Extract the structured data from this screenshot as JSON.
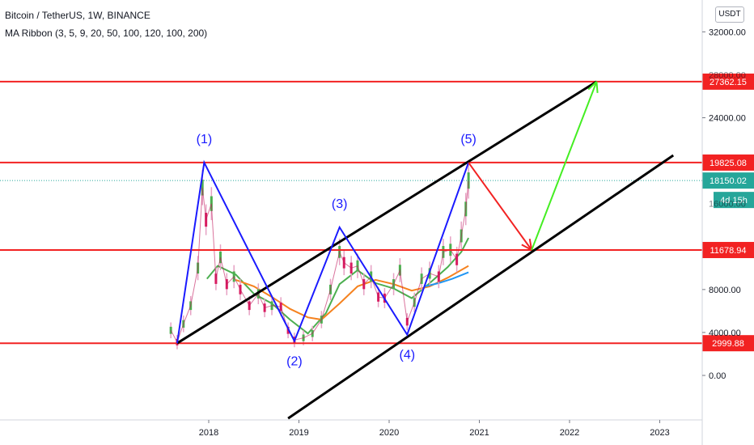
{
  "legend": {
    "title": "Bitcoin / TetherUS, 1W, BINANCE",
    "indicator": "MA Ribbon (3, 5, 9, 20, 50, 100, 120, 100, 200)"
  },
  "currency_badge": "USDT",
  "colors": {
    "horizontal_levels": "#f22222",
    "channel_lines": "#000000",
    "wave_lines": "#1a1aff",
    "target_arrow": "#44ee22",
    "down_arrow": "#f22222",
    "price_marker": "#26a69a",
    "ma_orange": "#f5821f",
    "ma_blue": "#2196f3",
    "ma_green": "#4caf50"
  },
  "chart_data": {
    "type": "candlestick",
    "symbol": "BTCUSDT",
    "interval": "1W",
    "exchange": "BINANCE",
    "x_ticks": [
      "2018",
      "2019",
      "2020",
      "2021",
      "2022",
      "2023"
    ],
    "y_ticks": [
      "0.00",
      "4000.00",
      "8000.00",
      "24000.00",
      "32000.00"
    ],
    "y_ticks_partial": [
      "28000.00",
      "16000.00"
    ],
    "price_levels": [
      {
        "label": "27362.15",
        "value": 27362.15
      },
      {
        "label": "19825.08",
        "value": 19825.08
      },
      {
        "label": "11678.94",
        "value": 11678.94
      },
      {
        "label": "2999.88",
        "value": 2999.88
      }
    ],
    "current_price": {
      "label": "18150.02",
      "value": 18150.02,
      "countdown": "4d 15h"
    },
    "wave_labels": [
      "(1)",
      "(2)",
      "(3)",
      "(4)",
      "(5)"
    ],
    "wave_points": [
      {
        "date": 2017.65,
        "value": 3000
      },
      {
        "date": 2017.95,
        "value": 19825
      },
      {
        "date": 2018.95,
        "value": 3200
      },
      {
        "date": 2019.45,
        "value": 13800
      },
      {
        "date": 2020.2,
        "value": 3800
      },
      {
        "date": 2020.88,
        "value": 19825
      },
      {
        "date": 2021.58,
        "value": 11679
      },
      {
        "date": 2022.3,
        "value": 27362
      }
    ],
    "price_series": [
      {
        "date": 2017.58,
        "value": 4200
      },
      {
        "date": 2017.65,
        "value": 3100
      },
      {
        "date": 2017.72,
        "value": 4800
      },
      {
        "date": 2017.8,
        "value": 6500
      },
      {
        "date": 2017.88,
        "value": 10000
      },
      {
        "date": 2017.93,
        "value": 17500
      },
      {
        "date": 2017.97,
        "value": 14500
      },
      {
        "date": 2018.03,
        "value": 16000
      },
      {
        "date": 2018.08,
        "value": 9000
      },
      {
        "date": 2018.13,
        "value": 11000
      },
      {
        "date": 2018.2,
        "value": 8500
      },
      {
        "date": 2018.28,
        "value": 9200
      },
      {
        "date": 2018.35,
        "value": 8000
      },
      {
        "date": 2018.45,
        "value": 6500
      },
      {
        "date": 2018.55,
        "value": 7600
      },
      {
        "date": 2018.62,
        "value": 6300
      },
      {
        "date": 2018.7,
        "value": 6500
      },
      {
        "date": 2018.8,
        "value": 6400
      },
      {
        "date": 2018.88,
        "value": 4200
      },
      {
        "date": 2018.95,
        "value": 3300
      },
      {
        "date": 2019.05,
        "value": 3500
      },
      {
        "date": 2019.15,
        "value": 3900
      },
      {
        "date": 2019.25,
        "value": 5200
      },
      {
        "date": 2019.35,
        "value": 8000
      },
      {
        "date": 2019.45,
        "value": 11500
      },
      {
        "date": 2019.5,
        "value": 10500
      },
      {
        "date": 2019.58,
        "value": 10000
      },
      {
        "date": 2019.65,
        "value": 10200
      },
      {
        "date": 2019.72,
        "value": 8500
      },
      {
        "date": 2019.8,
        "value": 9200
      },
      {
        "date": 2019.88,
        "value": 7300
      },
      {
        "date": 2019.95,
        "value": 7200
      },
      {
        "date": 2020.05,
        "value": 8500
      },
      {
        "date": 2020.12,
        "value": 9800
      },
      {
        "date": 2020.2,
        "value": 5000
      },
      {
        "date": 2020.28,
        "value": 6800
      },
      {
        "date": 2020.36,
        "value": 9000
      },
      {
        "date": 2020.45,
        "value": 9500
      },
      {
        "date": 2020.55,
        "value": 9200
      },
      {
        "date": 2020.6,
        "value": 11500
      },
      {
        "date": 2020.68,
        "value": 11700
      },
      {
        "date": 2020.75,
        "value": 10800
      },
      {
        "date": 2020.8,
        "value": 13000
      },
      {
        "date": 2020.85,
        "value": 15500
      },
      {
        "date": 2020.88,
        "value": 18150
      }
    ],
    "ma_series": [
      {
        "name": "",
        "color": "#4caf50",
        "values": [
          {
            "date": 2017.98,
            "value": 9000
          },
          {
            "date": 2018.1,
            "value": 10200
          },
          {
            "date": 2018.3,
            "value": 9400
          },
          {
            "date": 2018.5,
            "value": 7600
          },
          {
            "date": 2018.7,
            "value": 6700
          },
          {
            "date": 2018.9,
            "value": 5200
          },
          {
            "date": 2019.1,
            "value": 3900
          },
          {
            "date": 2019.3,
            "value": 5800
          },
          {
            "date": 2019.45,
            "value": 8500
          },
          {
            "date": 2019.65,
            "value": 9800
          },
          {
            "date": 2019.85,
            "value": 8600
          },
          {
            "date": 2020.05,
            "value": 8100
          },
          {
            "date": 2020.25,
            "value": 7200
          },
          {
            "date": 2020.45,
            "value": 8600
          },
          {
            "date": 2020.65,
            "value": 10100
          },
          {
            "date": 2020.8,
            "value": 11500
          },
          {
            "date": 2020.88,
            "value": 12800
          }
        ]
      },
      {
        "name": "",
        "color": "#f5821f",
        "values": [
          {
            "date": 2018.3,
            "value": 8900
          },
          {
            "date": 2018.5,
            "value": 8300
          },
          {
            "date": 2018.7,
            "value": 7300
          },
          {
            "date": 2018.9,
            "value": 6200
          },
          {
            "date": 2019.1,
            "value": 5400
          },
          {
            "date": 2019.25,
            "value": 5200
          },
          {
            "date": 2019.45,
            "value": 6700
          },
          {
            "date": 2019.65,
            "value": 8300
          },
          {
            "date": 2019.85,
            "value": 8900
          },
          {
            "date": 2020.05,
            "value": 8500
          },
          {
            "date": 2020.25,
            "value": 7900
          },
          {
            "date": 2020.45,
            "value": 8300
          },
          {
            "date": 2020.65,
            "value": 9100
          },
          {
            "date": 2020.88,
            "value": 10200
          }
        ]
      },
      {
        "name": "",
        "color": "#2196f3",
        "values": [
          {
            "date": 2020.4,
            "value": 8300
          },
          {
            "date": 2020.55,
            "value": 8600
          },
          {
            "date": 2020.7,
            "value": 9000
          },
          {
            "date": 2020.88,
            "value": 9600
          }
        ]
      }
    ],
    "channel": {
      "upper": [
        {
          "date": 2017.65,
          "value": 3000
        },
        {
          "date": 2022.3,
          "value": 27362
        }
      ],
      "lower": [
        {
          "date": 2018.88,
          "value": -4000
        },
        {
          "date": 2023.15,
          "value": 20500
        }
      ]
    },
    "projection": {
      "down_to": 11678.94,
      "up_to": 27362.15
    }
  }
}
